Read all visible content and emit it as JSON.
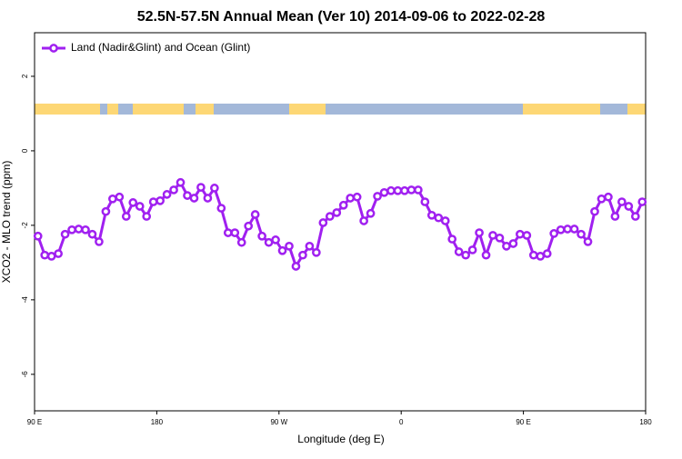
{
  "chart_data": {
    "type": "line",
    "title": "52.5N-57.5N Annual Mean (Ver 10)   2014-09-06 to 2022-02-28",
    "x_label": "Longitude (deg E)",
    "y_label": "XCO2 - MLO trend (ppm)",
    "legend": "top-left",
    "xlim": [
      90,
      540
    ],
    "ylim": [
      -6.98,
      3.17
    ],
    "xticks": [
      {
        "value": 90,
        "label": "90 E"
      },
      180,
      {
        "value": 270,
        "label": "90 W"
      },
      {
        "value": 360,
        "label": "0"
      },
      {
        "value": 450,
        "label": "90 E"
      },
      {
        "value": 540,
        "label": "180"
      }
    ],
    "yticks": [
      -6,
      -4,
      -2,
      0,
      2
    ],
    "x": [
      92.5,
      97.5,
      102.5,
      107.5,
      112.5,
      117.5,
      122.5,
      127.5,
      132.5,
      137.5,
      142.5,
      147.5,
      152.5,
      157.5,
      162.5,
      167.5,
      172.5,
      177.5,
      182.5,
      187.5,
      192.5,
      197.5,
      202.5,
      207.5,
      212.5,
      217.5,
      222.5,
      227.5,
      232.5,
      237.5,
      242.5,
      247.5,
      252.5,
      257.5,
      262.5,
      267.5,
      272.5,
      277.5,
      282.5,
      287.5,
      292.5,
      297.5,
      302.5,
      307.5,
      312.5,
      317.5,
      322.5,
      327.5,
      332.5,
      337.5,
      342.5,
      347.5,
      352.5,
      357.5,
      362.5,
      367.5,
      372.5,
      377.5,
      382.5,
      387.5,
      392.5,
      397.5,
      402.5,
      407.5,
      412.5,
      417.5,
      422.5,
      427.5,
      432.5,
      437.5,
      442.5,
      447.5,
      452.5,
      457.5,
      462.5,
      467.5,
      472.5,
      477.5,
      482.5,
      487.5,
      492.5,
      497.5,
      502.5,
      507.5,
      512.5,
      517.5,
      522.5,
      527.5,
      532.5,
      537.5
    ],
    "series": [
      {
        "name": "Land (Nadir&Glint) and Ocean (Glint)",
        "color": "#a020f0",
        "values": [
          -2.29,
          -2.8,
          -2.83,
          -2.76,
          -2.24,
          -2.12,
          -2.1,
          -2.12,
          -2.24,
          -2.44,
          -1.63,
          -1.29,
          -1.24,
          -1.76,
          -1.39,
          -1.49,
          -1.76,
          -1.37,
          -1.34,
          -1.17,
          -1.05,
          -0.85,
          -1.2,
          -1.27,
          -0.98,
          -1.27,
          -1.0,
          -1.54,
          -2.2,
          -2.2,
          -2.46,
          -2.02,
          -1.71,
          -2.29,
          -2.46,
          -2.39,
          -2.68,
          -2.56,
          -3.1,
          -2.8,
          -2.56,
          -2.73,
          -1.93,
          -1.76,
          -1.66,
          -1.46,
          -1.27,
          -1.24,
          -1.88,
          -1.68,
          -1.22,
          -1.12,
          -1.07,
          -1.07,
          -1.07,
          -1.05,
          -1.05,
          -1.37,
          -1.73,
          -1.8,
          -1.88,
          -2.37,
          -2.71,
          -2.8,
          -2.66,
          -2.2,
          -2.8,
          -2.27,
          -2.34,
          -2.56,
          -2.49,
          -2.24,
          -2.27,
          -2.8,
          -2.83,
          -2.76,
          -2.22,
          -2.12,
          -2.1,
          -2.1,
          -2.24,
          -2.44,
          -1.63,
          -1.29,
          -1.24,
          -1.76,
          -1.37,
          -1.49,
          -1.76,
          -1.37
        ]
      }
    ]
  }
}
